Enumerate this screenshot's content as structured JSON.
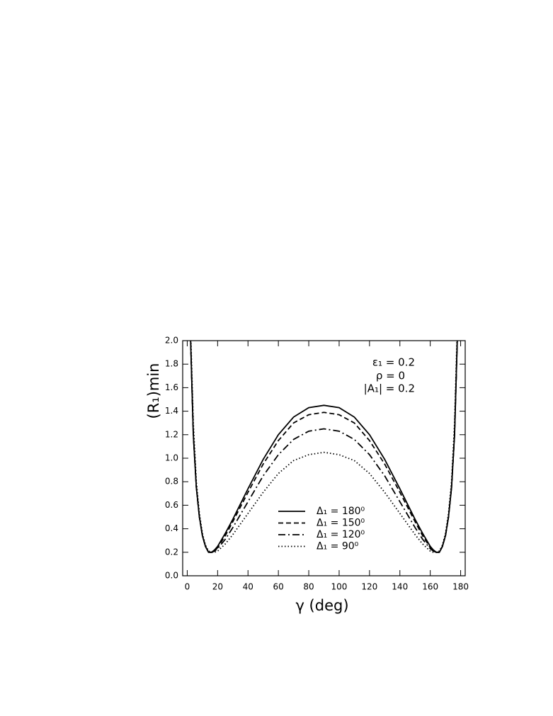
{
  "chart_data": {
    "type": "line",
    "xlabel": "γ (deg)",
    "ylabel": "(R₁)min",
    "annotations": [
      "ε₁ = 0.2",
      "ρ = 0",
      "|A₁| = 0.2"
    ],
    "xlim": [
      -3,
      183
    ],
    "ylim": [
      0,
      2
    ],
    "xticks": [
      0,
      20,
      40,
      60,
      80,
      100,
      120,
      140,
      160,
      180
    ],
    "yticks": [
      {
        "value": 0,
        "label": "0.0"
      },
      {
        "value": 0.2,
        "label": "0.2"
      },
      {
        "value": 0.4,
        "label": "0.4"
      },
      {
        "value": 0.6,
        "label": "0.6"
      },
      {
        "value": 0.8,
        "label": "0.8"
      },
      {
        "value": 1,
        "label": "1.0"
      },
      {
        "value": 1.2,
        "label": "1.2"
      },
      {
        "value": 1.4,
        "label": "1.4"
      },
      {
        "value": 1.6,
        "label": "1.6"
      },
      {
        "value": 1.8,
        "label": "1.8"
      },
      {
        "value": 2,
        "label": "2.0"
      }
    ],
    "legend": "lower center",
    "x": [
      2,
      4,
      6,
      8,
      10,
      12,
      14,
      16,
      18,
      20,
      25,
      30,
      40,
      50,
      60,
      70,
      80,
      90,
      100,
      110,
      120,
      130,
      140,
      150,
      155,
      160,
      162,
      164,
      166,
      168,
      170,
      172,
      174,
      176,
      178
    ],
    "series": [
      {
        "name": "Δ₁ = 180⁰",
        "color": "#000000",
        "style": "solid",
        "values": [
          2.1,
          1.2,
          0.75,
          0.5,
          0.34,
          0.25,
          0.2,
          0.2,
          0.22,
          0.25,
          0.36,
          0.48,
          0.74,
          0.99,
          1.2,
          1.35,
          1.43,
          1.45,
          1.43,
          1.35,
          1.2,
          0.99,
          0.74,
          0.48,
          0.36,
          0.25,
          0.22,
          0.2,
          0.2,
          0.25,
          0.34,
          0.5,
          0.75,
          1.2,
          2.1
        ]
      },
      {
        "name": "Δ₁ = 150⁰",
        "color": "#000000",
        "style": "dashed",
        "values": [
          2.1,
          1.2,
          0.75,
          0.5,
          0.34,
          0.25,
          0.2,
          0.2,
          0.21,
          0.24,
          0.34,
          0.46,
          0.71,
          0.95,
          1.15,
          1.3,
          1.37,
          1.39,
          1.37,
          1.3,
          1.15,
          0.95,
          0.71,
          0.46,
          0.34,
          0.24,
          0.21,
          0.2,
          0.2,
          0.25,
          0.34,
          0.5,
          0.75,
          1.2,
          2.1
        ]
      },
      {
        "name": "Δ₁ = 120⁰",
        "color": "#000000",
        "style": "dashdot",
        "values": [
          2.1,
          1.2,
          0.75,
          0.5,
          0.34,
          0.25,
          0.2,
          0.2,
          0.21,
          0.23,
          0.31,
          0.41,
          0.63,
          0.85,
          1.03,
          1.16,
          1.23,
          1.25,
          1.23,
          1.16,
          1.03,
          0.85,
          0.63,
          0.41,
          0.31,
          0.23,
          0.21,
          0.2,
          0.2,
          0.25,
          0.34,
          0.5,
          0.75,
          1.2,
          2.1
        ]
      },
      {
        "name": "Δ₁ = 90⁰",
        "color": "#000000",
        "style": "dotted",
        "values": [
          2.2,
          1.3,
          0.8,
          0.53,
          0.36,
          0.26,
          0.21,
          0.2,
          0.2,
          0.21,
          0.27,
          0.35,
          0.53,
          0.71,
          0.87,
          0.98,
          1.03,
          1.05,
          1.03,
          0.98,
          0.87,
          0.71,
          0.53,
          0.35,
          0.27,
          0.21,
          0.2,
          0.2,
          0.21,
          0.26,
          0.36,
          0.53,
          0.8,
          1.3,
          2.2
        ]
      }
    ]
  }
}
